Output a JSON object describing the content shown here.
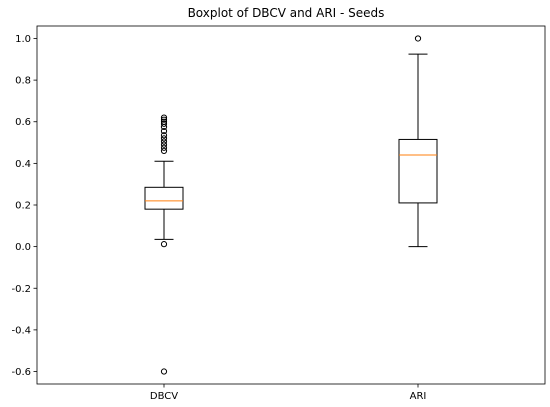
{
  "chart_data": {
    "type": "boxplot",
    "title": "Boxplot of DBCV and ARI - Seeds",
    "xlabel": "",
    "ylabel": "",
    "categories": [
      "DBCV",
      "ARI"
    ],
    "ylim": [
      -0.66,
      1.06
    ],
    "yticks": [
      -0.6,
      -0.4,
      -0.2,
      0.0,
      0.2,
      0.4,
      0.6,
      0.8,
      1.0
    ],
    "ytick_labels": [
      "-0.6",
      "-0.4",
      "-0.2",
      "0.0",
      "0.2",
      "0.4",
      "0.6",
      "0.8",
      "1.0"
    ],
    "grid": false,
    "legend": "none",
    "colors": {
      "box": "#000000",
      "median": "#ff7f0e",
      "flier": "#000000"
    },
    "boxes": [
      {
        "name": "DBCV",
        "whisker_low": 0.035,
        "q1": 0.18,
        "median": 0.22,
        "q3": 0.285,
        "whisker_high": 0.41,
        "fliers": [
          0.012,
          -0.6,
          0.46,
          0.475,
          0.49,
          0.505,
          0.52,
          0.535,
          0.555,
          0.575,
          0.59,
          0.6,
          0.61,
          0.62
        ]
      },
      {
        "name": "ARI",
        "whisker_low": 0.0,
        "q1": 0.21,
        "median": 0.44,
        "q3": 0.515,
        "whisker_high": 0.925,
        "fliers": [
          1.0
        ]
      }
    ]
  }
}
